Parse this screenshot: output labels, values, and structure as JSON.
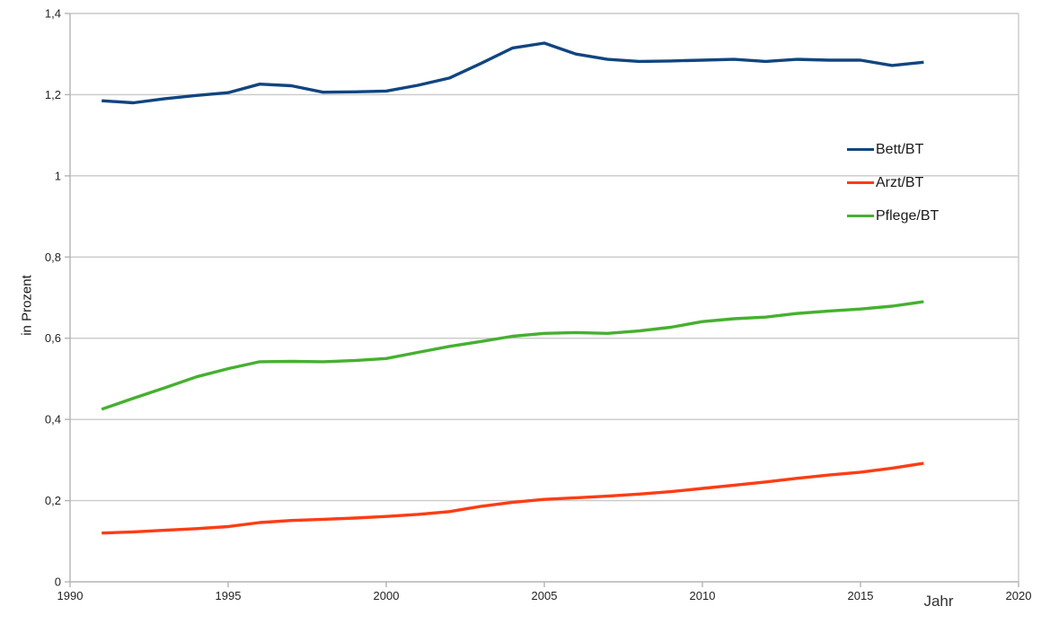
{
  "chart_data": {
    "type": "line",
    "title": "",
    "xlabel": "Jahr",
    "ylabel": "in Prozent",
    "xlim": [
      1990,
      2020
    ],
    "ylim": [
      0,
      1.4
    ],
    "grid": "horizontal",
    "legend_position": "right-inside",
    "x_ticks": {
      "values": [
        1990,
        1995,
        2000,
        2005,
        2010,
        2015,
        2020
      ],
      "labels": [
        "1990",
        "1995",
        "2000",
        "2005",
        "2010",
        "2015",
        "2020"
      ]
    },
    "y_ticks": {
      "values": [
        0,
        0.2,
        0.4,
        0.6,
        0.8,
        1.0,
        1.2,
        1.4
      ],
      "labels": [
        "0",
        "0,2",
        "0,4",
        "0,6",
        "0,8",
        "1",
        "1,2",
        "1,4"
      ]
    },
    "x": [
      1991,
      1992,
      1993,
      1994,
      1995,
      1996,
      1997,
      1998,
      1999,
      2000,
      2001,
      2002,
      2003,
      2004,
      2005,
      2006,
      2007,
      2008,
      2009,
      2010,
      2011,
      2012,
      2013,
      2014,
      2015,
      2016,
      2017
    ],
    "series": [
      {
        "name": "Bett/BT",
        "color": "#104580",
        "values": [
          1.185,
          1.18,
          1.19,
          1.198,
          1.205,
          1.226,
          1.222,
          1.206,
          1.207,
          1.209,
          1.223,
          1.241,
          1.277,
          1.315,
          1.327,
          1.3,
          1.287,
          1.282,
          1.283,
          1.285,
          1.287,
          1.282,
          1.287,
          1.285,
          1.285,
          1.272,
          1.28
        ]
      },
      {
        "name": "Arzt/BT",
        "color": "#FF3C14",
        "values": [
          0.12,
          0.123,
          0.127,
          0.131,
          0.136,
          0.146,
          0.151,
          0.154,
          0.157,
          0.161,
          0.166,
          0.173,
          0.186,
          0.196,
          0.203,
          0.207,
          0.211,
          0.216,
          0.222,
          0.23,
          0.238,
          0.246,
          0.255,
          0.263,
          0.27,
          0.28,
          0.292
        ]
      },
      {
        "name": "Pflege/BT",
        "color": "#46B030",
        "values": [
          0.425,
          0.452,
          0.478,
          0.505,
          0.525,
          0.542,
          0.543,
          0.542,
          0.545,
          0.55,
          0.565,
          0.58,
          0.592,
          0.605,
          0.612,
          0.614,
          0.612,
          0.618,
          0.627,
          0.641,
          0.648,
          0.652,
          0.661,
          0.667,
          0.672,
          0.679,
          0.69
        ]
      }
    ],
    "colors": {
      "grid": "#c9c9c9",
      "axis": "#b3b3b3",
      "tick_text": "#222222"
    }
  }
}
